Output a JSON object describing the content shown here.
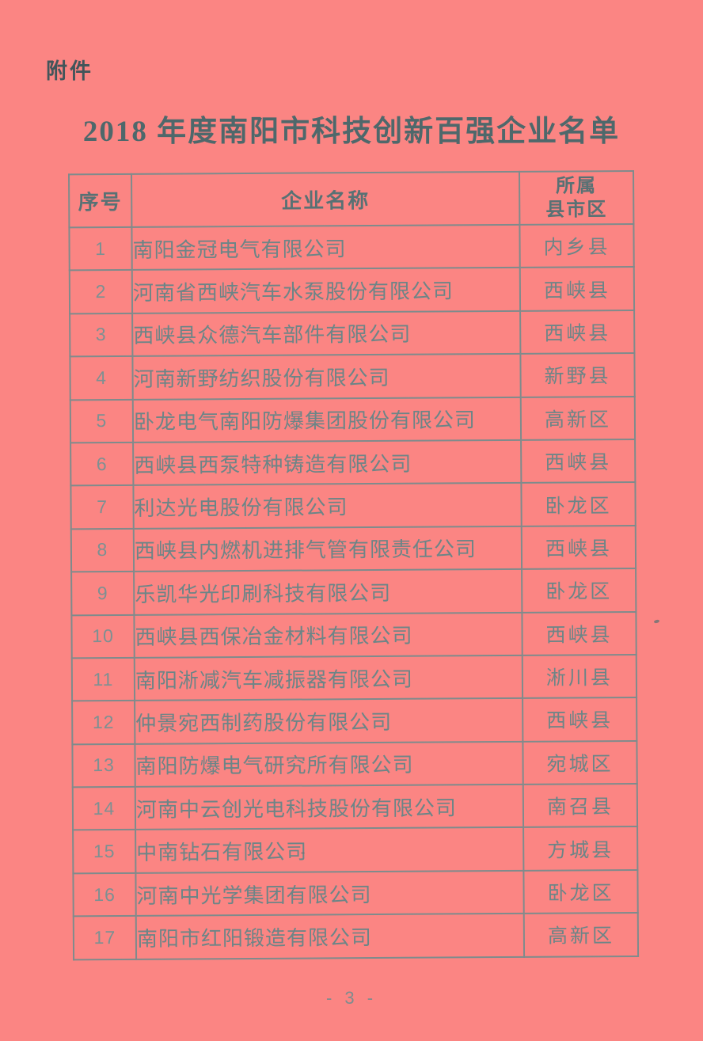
{
  "page": {
    "attachment_label": "附件",
    "title": "2018 年度南阳市科技创新百强企业名单",
    "page_number": "- 3 -"
  },
  "table": {
    "headers": {
      "no": "序号",
      "name": "企业名称",
      "district": "所属\n县市区"
    },
    "rows": [
      {
        "no": "1",
        "name": "南阳金冠电气有限公司",
        "district": "内乡县"
      },
      {
        "no": "2",
        "name": "河南省西峡汽车水泵股份有限公司",
        "district": "西峡县"
      },
      {
        "no": "3",
        "name": "西峡县众德汽车部件有限公司",
        "district": "西峡县"
      },
      {
        "no": "4",
        "name": "河南新野纺织股份有限公司",
        "district": "新野县"
      },
      {
        "no": "5",
        "name": "卧龙电气南阳防爆集团股份有限公司",
        "district": "高新区"
      },
      {
        "no": "6",
        "name": "西峡县西泵特种铸造有限公司",
        "district": "西峡县"
      },
      {
        "no": "7",
        "name": "利达光电股份有限公司",
        "district": "卧龙区"
      },
      {
        "no": "8",
        "name": "西峡县内燃机进排气管有限责任公司",
        "district": "西峡县"
      },
      {
        "no": "9",
        "name": "乐凯华光印刷科技有限公司",
        "district": "卧龙区"
      },
      {
        "no": "10",
        "name": "西峡县西保冶金材料有限公司",
        "district": "西峡县"
      },
      {
        "no": "11",
        "name": "南阳淅减汽车减振器有限公司",
        "district": "淅川县"
      },
      {
        "no": "12",
        "name": "仲景宛西制药股份有限公司",
        "district": "西峡县"
      },
      {
        "no": "13",
        "name": "南阳防爆电气研究所有限公司",
        "district": "宛城区"
      },
      {
        "no": "14",
        "name": "河南中云创光电科技股份有限公司",
        "district": "南召县"
      },
      {
        "no": "15",
        "name": "中南钻石有限公司",
        "district": "方城县"
      },
      {
        "no": "16",
        "name": "河南中光学集团有限公司",
        "district": "卧龙区"
      },
      {
        "no": "17",
        "name": "南阳市红阳锻造有限公司",
        "district": "高新区"
      }
    ]
  },
  "colors": {
    "paper_background": "#fb8583",
    "table_border": "#7f8b8c",
    "body_text": "#6c8587",
    "title_text": "#4e686b"
  }
}
